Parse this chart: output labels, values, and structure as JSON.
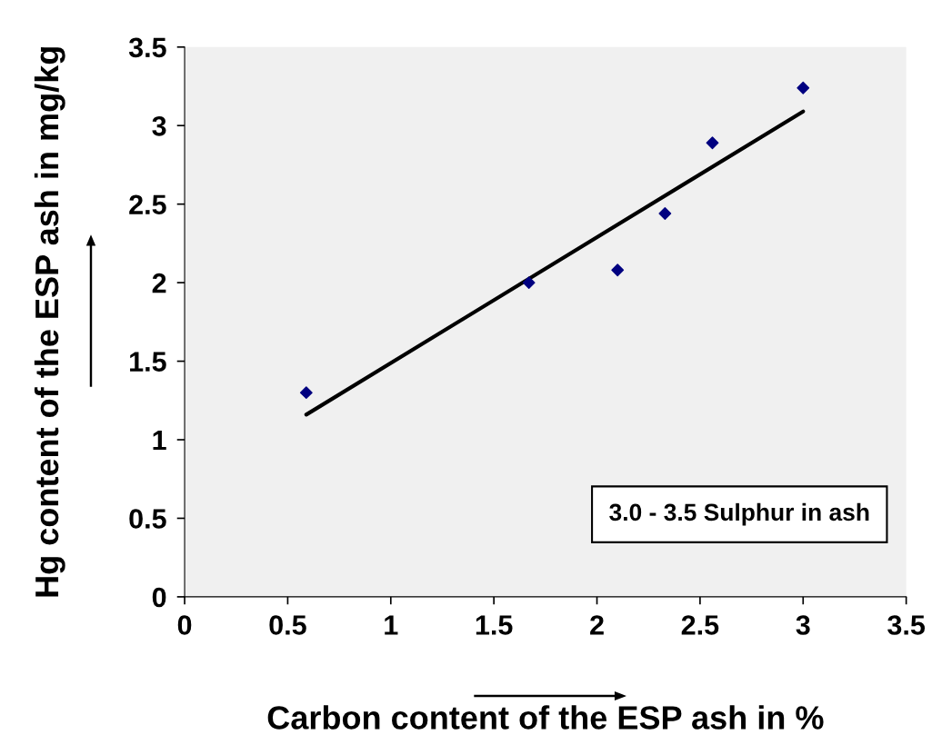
{
  "chart_data": {
    "type": "scatter",
    "xlabel": "Carbon content of the ESP ash in %",
    "ylabel": "Hg content of the ESP ash in mg/kg",
    "series": [
      {
        "color": "#000080",
        "marker": "diamond",
        "x": [
          0.59,
          1.67,
          2.1,
          2.33,
          2.56,
          3.0
        ],
        "values": [
          1.3,
          2.0,
          2.08,
          2.44,
          2.89,
          3.24
        ]
      },
      {
        "type": "line",
        "color": "#000000",
        "marker": "none",
        "line_style": "solid",
        "x": [
          0.59,
          3.0
        ],
        "values": [
          1.16,
          3.09
        ]
      }
    ],
    "xlim": [
      0,
      3.5
    ],
    "xticks": [
      0,
      0.5,
      1,
      1.5,
      2,
      2.5,
      3,
      3.5
    ],
    "ylim": [
      0,
      3.5
    ],
    "yticks": [
      0,
      0.5,
      1,
      1.5,
      2,
      2.5,
      3,
      3.5
    ],
    "grid": false,
    "legend": false,
    "annotations": [
      "3.0 - 3.5 Sulphur in ash"
    ]
  }
}
